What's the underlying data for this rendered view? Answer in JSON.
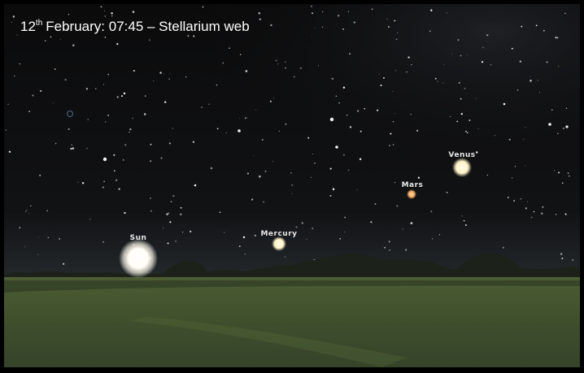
{
  "caption": {
    "day": "12",
    "suffix": "th",
    "rest": "February: 07:45 – Stellarium web"
  },
  "objects": [
    {
      "label": "Sun"
    },
    {
      "label": "Mercury"
    },
    {
      "label": "Mars"
    },
    {
      "label": "Venus"
    }
  ]
}
